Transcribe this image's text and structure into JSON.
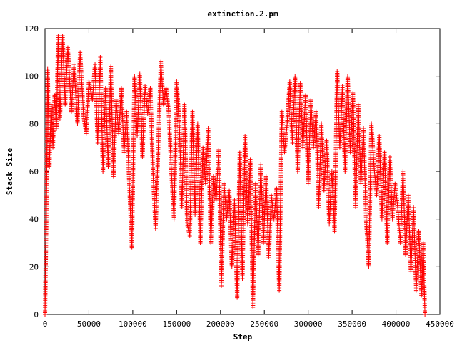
{
  "chart_data": {
    "type": "scatter",
    "title": "extinction.2.pm",
    "xlabel": "Step",
    "ylabel": "Stack Size",
    "xlim": [
      0,
      450000
    ],
    "ylim": [
      0,
      120
    ],
    "x_ticks": [
      0,
      50000,
      100000,
      150000,
      200000,
      250000,
      300000,
      350000,
      400000,
      450000
    ],
    "y_ticks": [
      0,
      20,
      40,
      60,
      80,
      100,
      120
    ],
    "x_tick_labels": [
      "0",
      "50000",
      "100000",
      "150000",
      "200000",
      "250000",
      "300000",
      "350000",
      "400000",
      "450000"
    ],
    "y_tick_labels": [
      "0",
      "20",
      "40",
      "60",
      "80",
      "100",
      "120"
    ],
    "marker": "+",
    "color": "#ff0000",
    "grid": false,
    "legend": "none",
    "series": [
      {
        "name": "",
        "points": [
          [
            0,
            0
          ],
          [
            1500,
            40
          ],
          [
            3000,
            103
          ],
          [
            5000,
            62
          ],
          [
            7000,
            88
          ],
          [
            9000,
            70
          ],
          [
            11000,
            92
          ],
          [
            13000,
            78
          ],
          [
            15000,
            117
          ],
          [
            17000,
            82
          ],
          [
            20000,
            117
          ],
          [
            23000,
            88
          ],
          [
            26000,
            112
          ],
          [
            30000,
            85
          ],
          [
            33000,
            105
          ],
          [
            37000,
            80
          ],
          [
            40000,
            110
          ],
          [
            44000,
            83
          ],
          [
            47000,
            76
          ],
          [
            50000,
            98
          ],
          [
            54000,
            90
          ],
          [
            57000,
            105
          ],
          [
            60000,
            72
          ],
          [
            63000,
            108
          ],
          [
            66000,
            60
          ],
          [
            69000,
            95
          ],
          [
            72000,
            62
          ],
          [
            75000,
            104
          ],
          [
            78000,
            58
          ],
          [
            81000,
            90
          ],
          [
            84000,
            76
          ],
          [
            87000,
            95
          ],
          [
            90000,
            68
          ],
          [
            93000,
            85
          ],
          [
            96000,
            55
          ],
          [
            99000,
            28
          ],
          [
            102000,
            100
          ],
          [
            105000,
            75
          ],
          [
            108000,
            101
          ],
          [
            111000,
            66
          ],
          [
            114000,
            96
          ],
          [
            117000,
            84
          ],
          [
            120000,
            95
          ],
          [
            123000,
            60
          ],
          [
            126000,
            36
          ],
          [
            129000,
            70
          ],
          [
            132000,
            106
          ],
          [
            135000,
            88
          ],
          [
            138000,
            95
          ],
          [
            141000,
            85
          ],
          [
            144000,
            60
          ],
          [
            147000,
            40
          ],
          [
            150000,
            98
          ],
          [
            153000,
            80
          ],
          [
            156000,
            45
          ],
          [
            159000,
            88
          ],
          [
            162000,
            38
          ],
          [
            165000,
            33
          ],
          [
            168000,
            85
          ],
          [
            171000,
            42
          ],
          [
            174000,
            80
          ],
          [
            177000,
            30
          ],
          [
            180000,
            70
          ],
          [
            183000,
            55
          ],
          [
            186000,
            78
          ],
          [
            189000,
            30
          ],
          [
            192000,
            58
          ],
          [
            195000,
            48
          ],
          [
            198000,
            69
          ],
          [
            201000,
            12
          ],
          [
            204000,
            55
          ],
          [
            207000,
            40
          ],
          [
            210000,
            52
          ],
          [
            213000,
            20
          ],
          [
            216000,
            48
          ],
          [
            219000,
            7
          ],
          [
            222000,
            68
          ],
          [
            225000,
            15
          ],
          [
            228000,
            75
          ],
          [
            231000,
            38
          ],
          [
            234000,
            65
          ],
          [
            237000,
            3
          ],
          [
            240000,
            55
          ],
          [
            243000,
            25
          ],
          [
            246000,
            63
          ],
          [
            249000,
            30
          ],
          [
            252000,
            58
          ],
          [
            255000,
            24
          ],
          [
            258000,
            50
          ],
          [
            261000,
            40
          ],
          [
            264000,
            53
          ],
          [
            267000,
            10
          ],
          [
            270000,
            85
          ],
          [
            273000,
            68
          ],
          [
            276000,
            80
          ],
          [
            279000,
            98
          ],
          [
            282000,
            72
          ],
          [
            285000,
            100
          ],
          [
            288000,
            60
          ],
          [
            291000,
            97
          ],
          [
            294000,
            70
          ],
          [
            297000,
            92
          ],
          [
            300000,
            55
          ],
          [
            303000,
            90
          ],
          [
            306000,
            70
          ],
          [
            309000,
            85
          ],
          [
            312000,
            45
          ],
          [
            315000,
            80
          ],
          [
            318000,
            52
          ],
          [
            321000,
            73
          ],
          [
            324000,
            38
          ],
          [
            327000,
            60
          ],
          [
            330000,
            35
          ],
          [
            333000,
            102
          ],
          [
            336000,
            70
          ],
          [
            339000,
            96
          ],
          [
            342000,
            60
          ],
          [
            345000,
            100
          ],
          [
            348000,
            68
          ],
          [
            351000,
            93
          ],
          [
            354000,
            45
          ],
          [
            357000,
            88
          ],
          [
            360000,
            55
          ],
          [
            363000,
            78
          ],
          [
            366000,
            40
          ],
          [
            369000,
            20
          ],
          [
            372000,
            80
          ],
          [
            375000,
            62
          ],
          [
            378000,
            50
          ],
          [
            381000,
            75
          ],
          [
            384000,
            40
          ],
          [
            387000,
            68
          ],
          [
            390000,
            30
          ],
          [
            393000,
            66
          ],
          [
            396000,
            40
          ],
          [
            399000,
            55
          ],
          [
            402000,
            45
          ],
          [
            405000,
            30
          ],
          [
            408000,
            60
          ],
          [
            411000,
            25
          ],
          [
            414000,
            50
          ],
          [
            417000,
            18
          ],
          [
            420000,
            45
          ],
          [
            423000,
            10
          ],
          [
            426000,
            35
          ],
          [
            429000,
            8
          ],
          [
            431000,
            30
          ],
          [
            433000,
            0
          ]
        ]
      }
    ]
  }
}
